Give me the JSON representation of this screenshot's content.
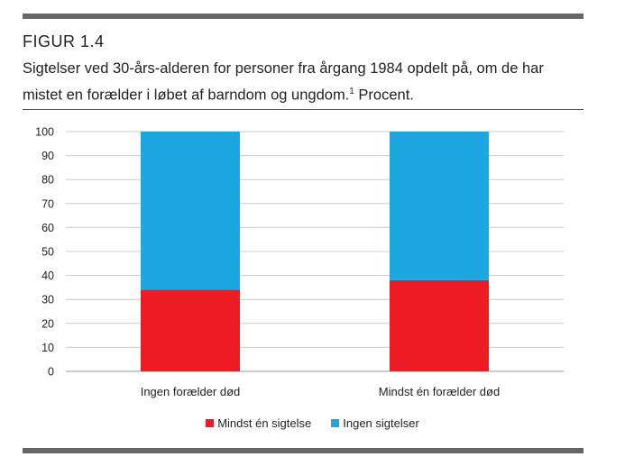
{
  "figure": {
    "label": "FIGUR 1.4",
    "caption_main": "Sigtelser ved 30-års-alderen for personer fra årgang 1984 opdelt på, om de har mistet en forælder i løbet af barndom og ungdom.",
    "caption_sup": "1",
    "caption_tail": " Procent."
  },
  "colors": {
    "red": "#ed1c24",
    "blue": "#1ca7e0",
    "grid": "#cccccc",
    "rule": "#666666"
  },
  "chart_data": {
    "type": "bar",
    "stacked": true,
    "categories": [
      "Ingen forælder død",
      "Mindst én forælder død"
    ],
    "series": [
      {
        "name": "Mindst én sigtelse",
        "color": "#ed1c24",
        "values": [
          34,
          38
        ]
      },
      {
        "name": "Ingen sigtelser",
        "color": "#1ca7e0",
        "values": [
          66,
          62
        ]
      }
    ],
    "ylim": [
      0,
      100
    ],
    "yticks": [
      0,
      10,
      20,
      30,
      40,
      50,
      60,
      70,
      80,
      90,
      100
    ],
    "grid": true,
    "legend": "bottom"
  }
}
